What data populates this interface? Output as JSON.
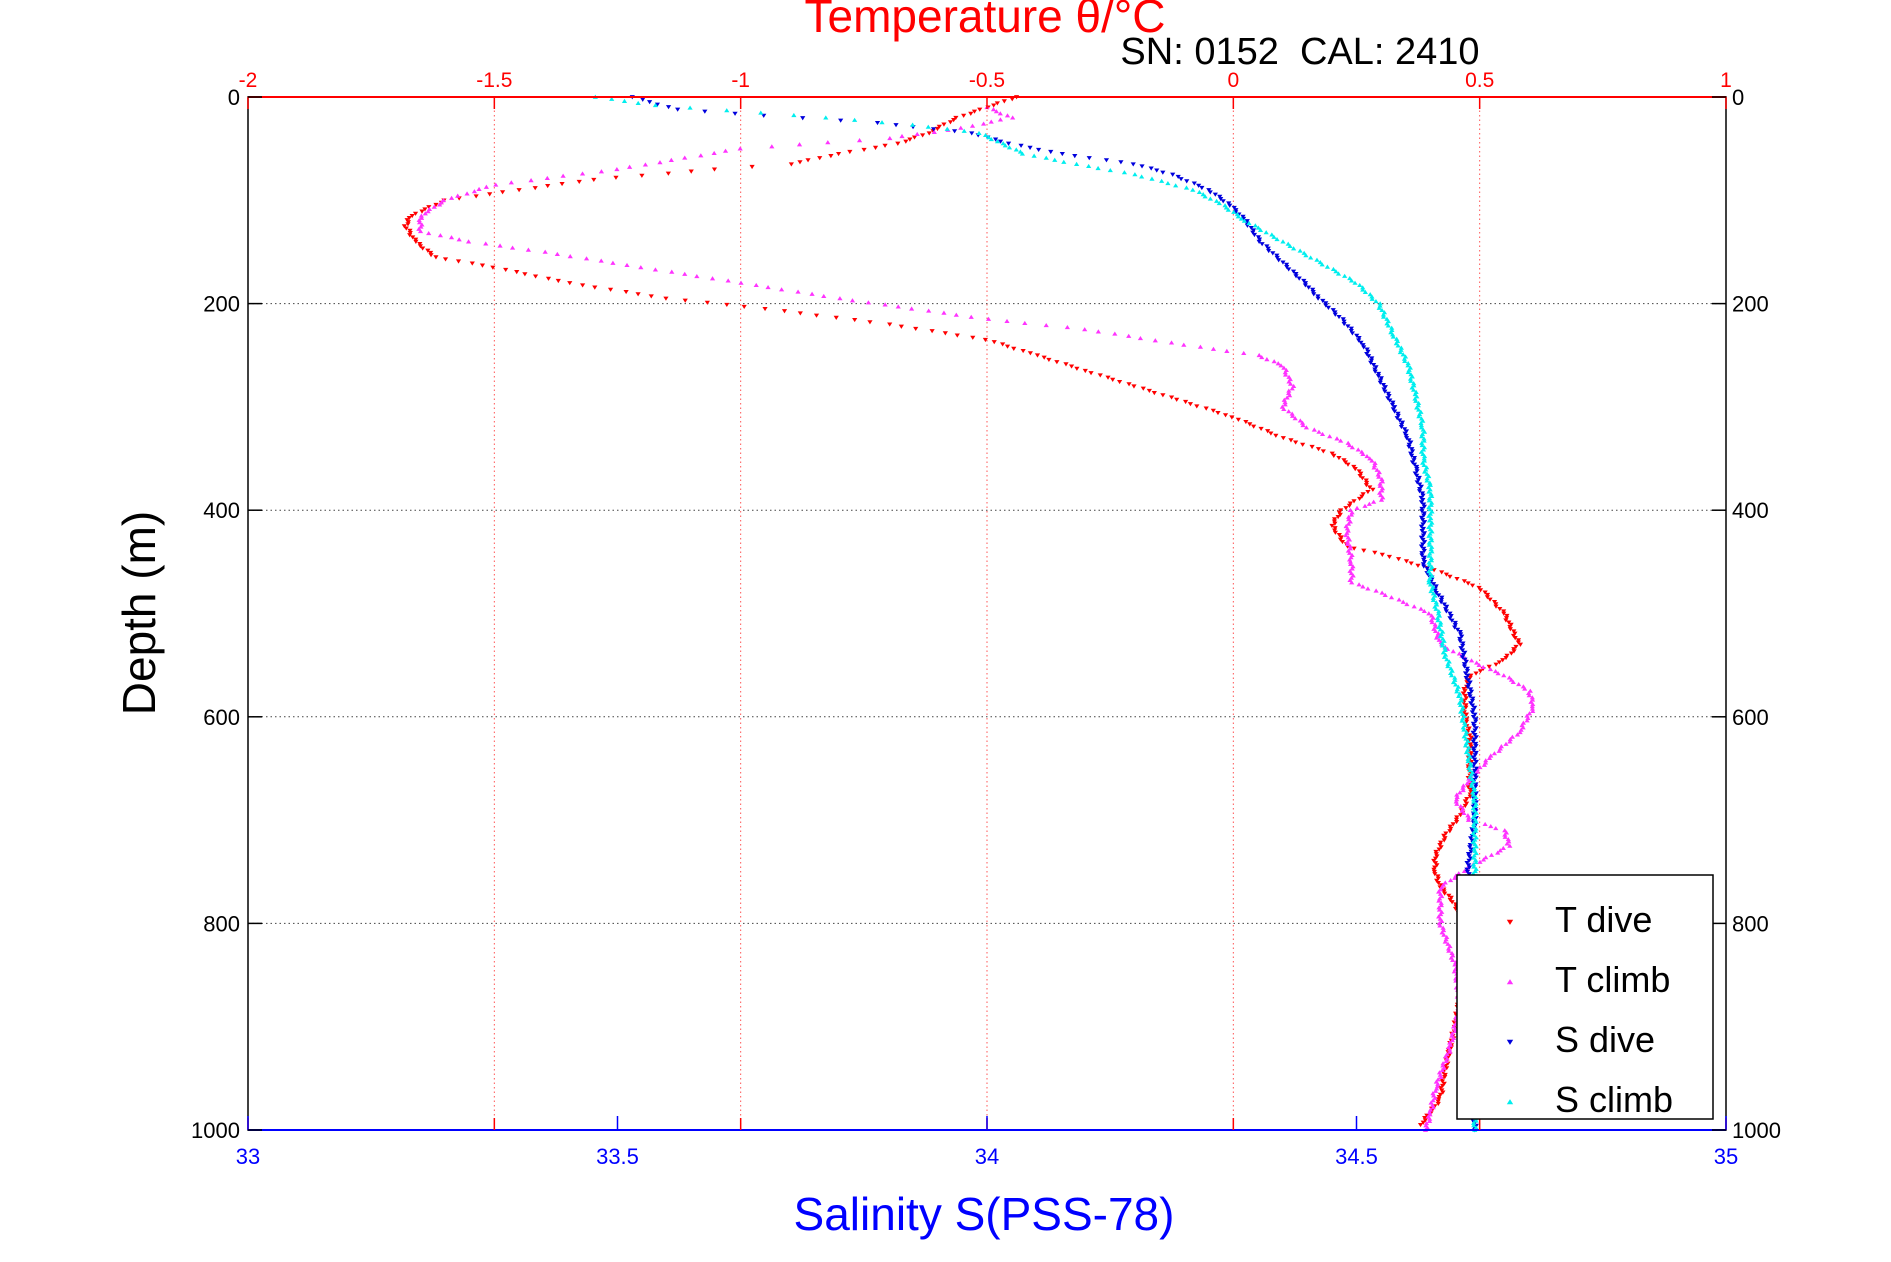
{
  "chart_data": {
    "type": "scatter",
    "top_title": "Temperature θ/°C",
    "top_subtitle": "SN: 0152  CAL: 2410",
    "xlabel": "Salinity S(PSS-78)",
    "ylabel": "Depth (m)",
    "salinity_axis": {
      "range": [
        33,
        35
      ],
      "ticks": [
        "33",
        "33.5",
        "34",
        "34.5",
        "35"
      ],
      "color": "#0000ff"
    },
    "temperature_axis": {
      "range": [
        -2,
        1
      ],
      "ticks": [
        "-2",
        "-1.5",
        "-1",
        "-0.5",
        "0",
        "0.5",
        "1"
      ],
      "color": "#ff0000"
    },
    "depth_axis": {
      "range": [
        0,
        1000
      ],
      "reversed": true,
      "ticks": [
        "0",
        "200",
        "400",
        "600",
        "800",
        "1000"
      ]
    },
    "grid": true,
    "legend_position": "bottom-right",
    "series": [
      {
        "name": "T dive",
        "axis": "temperature",
        "color": "#ff0000",
        "marker": "triangle-down",
        "points": [
          [
            -0.44,
            0
          ],
          [
            -0.5,
            10
          ],
          [
            -0.56,
            20
          ],
          [
            -0.62,
            35
          ],
          [
            -0.68,
            45
          ],
          [
            -0.8,
            55
          ],
          [
            -0.9,
            65
          ],
          [
            -1.05,
            70
          ],
          [
            -1.3,
            80
          ],
          [
            -1.45,
            90
          ],
          [
            -1.6,
            100
          ],
          [
            -1.67,
            115
          ],
          [
            -1.68,
            125
          ],
          [
            -1.66,
            140
          ],
          [
            -1.62,
            155
          ],
          [
            -1.5,
            165
          ],
          [
            -1.35,
            180
          ],
          [
            -1.15,
            195
          ],
          [
            -0.95,
            205
          ],
          [
            -0.7,
            220
          ],
          [
            -0.5,
            235
          ],
          [
            -0.4,
            250
          ],
          [
            -0.3,
            265
          ],
          [
            -0.2,
            280
          ],
          [
            -0.1,
            295
          ],
          [
            0.0,
            310
          ],
          [
            0.1,
            330
          ],
          [
            0.2,
            345
          ],
          [
            0.25,
            360
          ],
          [
            0.28,
            380
          ],
          [
            0.22,
            400
          ],
          [
            0.2,
            415
          ],
          [
            0.23,
            435
          ],
          [
            0.32,
            445
          ],
          [
            0.42,
            460
          ],
          [
            0.5,
            475
          ],
          [
            0.55,
            500
          ],
          [
            0.58,
            530
          ],
          [
            0.55,
            545
          ],
          [
            0.48,
            560
          ],
          [
            0.47,
            575
          ],
          [
            0.47,
            600
          ],
          [
            0.48,
            620
          ],
          [
            0.48,
            650
          ],
          [
            0.48,
            675
          ],
          [
            0.46,
            695
          ],
          [
            0.43,
            715
          ],
          [
            0.41,
            735
          ],
          [
            0.41,
            750
          ],
          [
            0.42,
            765
          ],
          [
            0.44,
            775
          ],
          [
            0.46,
            790
          ],
          [
            0.47,
            830
          ],
          [
            0.46,
            870
          ],
          [
            0.45,
            900
          ],
          [
            0.43,
            940
          ],
          [
            0.42,
            970
          ],
          [
            0.38,
            995
          ]
        ]
      },
      {
        "name": "T climb",
        "axis": "temperature",
        "color": "#ff33ff",
        "marker": "triangle-up",
        "points": [
          [
            -0.5,
            10
          ],
          [
            -0.45,
            20
          ],
          [
            -0.55,
            30
          ],
          [
            -0.7,
            40
          ],
          [
            -1.0,
            50
          ],
          [
            -1.25,
            70
          ],
          [
            -1.5,
            85
          ],
          [
            -1.6,
            100
          ],
          [
            -1.65,
            115
          ],
          [
            -1.65,
            130
          ],
          [
            -1.55,
            140
          ],
          [
            -1.4,
            150
          ],
          [
            -1.2,
            165
          ],
          [
            -1.0,
            180
          ],
          [
            -0.8,
            195
          ],
          [
            -0.65,
            205
          ],
          [
            -0.5,
            215
          ],
          [
            -0.3,
            225
          ],
          [
            -0.1,
            240
          ],
          [
            0.05,
            250
          ],
          [
            0.1,
            260
          ],
          [
            0.12,
            280
          ],
          [
            0.1,
            300
          ],
          [
            0.15,
            320
          ],
          [
            0.23,
            335
          ],
          [
            0.28,
            350
          ],
          [
            0.3,
            370
          ],
          [
            0.3,
            390
          ],
          [
            0.24,
            400
          ],
          [
            0.23,
            420
          ],
          [
            0.24,
            450
          ],
          [
            0.24,
            470
          ],
          [
            0.3,
            480
          ],
          [
            0.4,
            500
          ],
          [
            0.42,
            530
          ],
          [
            0.5,
            550
          ],
          [
            0.55,
            560
          ],
          [
            0.6,
            575
          ],
          [
            0.61,
            590
          ],
          [
            0.58,
            615
          ],
          [
            0.52,
            640
          ],
          [
            0.48,
            660
          ],
          [
            0.45,
            680
          ],
          [
            0.48,
            700
          ],
          [
            0.55,
            710
          ],
          [
            0.56,
            725
          ],
          [
            0.48,
            745
          ],
          [
            0.42,
            765
          ],
          [
            0.42,
            800
          ],
          [
            0.45,
            840
          ],
          [
            0.46,
            880
          ],
          [
            0.44,
            920
          ],
          [
            0.41,
            960
          ],
          [
            0.4,
            985
          ],
          [
            0.39,
            1000
          ]
        ]
      },
      {
        "name": "S dive",
        "axis": "salinity",
        "color": "#0000dd",
        "marker": "triangle-down",
        "points": [
          [
            33.52,
            0
          ],
          [
            33.58,
            12
          ],
          [
            33.7,
            18
          ],
          [
            33.85,
            25
          ],
          [
            33.98,
            35
          ],
          [
            34.03,
            45
          ],
          [
            34.1,
            55
          ],
          [
            34.2,
            65
          ],
          [
            34.25,
            75
          ],
          [
            34.3,
            90
          ],
          [
            34.33,
            105
          ],
          [
            34.35,
            120
          ],
          [
            34.37,
            140
          ],
          [
            34.4,
            160
          ],
          [
            34.43,
            180
          ],
          [
            34.45,
            195
          ],
          [
            34.48,
            215
          ],
          [
            34.51,
            240
          ],
          [
            34.53,
            270
          ],
          [
            34.55,
            300
          ],
          [
            34.57,
            330
          ],
          [
            34.58,
            360
          ],
          [
            34.59,
            390
          ],
          [
            34.59,
            420
          ],
          [
            34.59,
            450
          ],
          [
            34.61,
            480
          ],
          [
            34.64,
            520
          ],
          [
            34.65,
            560
          ],
          [
            34.66,
            600
          ],
          [
            34.66,
            650
          ],
          [
            34.66,
            700
          ],
          [
            34.65,
            750
          ],
          [
            34.66,
            800
          ],
          [
            34.66,
            850
          ],
          [
            34.66,
            900
          ],
          [
            34.66,
            950
          ],
          [
            34.66,
            1000
          ]
        ]
      },
      {
        "name": "S climb",
        "axis": "salinity",
        "color": "#00eeee",
        "marker": "triangle-up",
        "points": [
          [
            33.47,
            0
          ],
          [
            33.55,
            8
          ],
          [
            33.65,
            13
          ],
          [
            33.78,
            20
          ],
          [
            33.9,
            27
          ],
          [
            33.99,
            35
          ],
          [
            34.02,
            45
          ],
          [
            34.05,
            55
          ],
          [
            34.12,
            65
          ],
          [
            34.2,
            75
          ],
          [
            34.28,
            90
          ],
          [
            34.32,
            105
          ],
          [
            34.35,
            120
          ],
          [
            34.4,
            140
          ],
          [
            34.45,
            160
          ],
          [
            34.5,
            180
          ],
          [
            34.53,
            200
          ],
          [
            34.55,
            230
          ],
          [
            34.57,
            260
          ],
          [
            34.58,
            290
          ],
          [
            34.59,
            320
          ],
          [
            34.59,
            350
          ],
          [
            34.6,
            380
          ],
          [
            34.6,
            410
          ],
          [
            34.6,
            440
          ],
          [
            34.6,
            470
          ],
          [
            34.61,
            500
          ],
          [
            34.62,
            540
          ],
          [
            34.64,
            580
          ],
          [
            34.65,
            630
          ],
          [
            34.66,
            680
          ],
          [
            34.66,
            730
          ],
          [
            34.66,
            780
          ],
          [
            34.66,
            840
          ],
          [
            34.66,
            900
          ],
          [
            34.66,
            960
          ],
          [
            34.66,
            1000
          ]
        ]
      }
    ]
  }
}
